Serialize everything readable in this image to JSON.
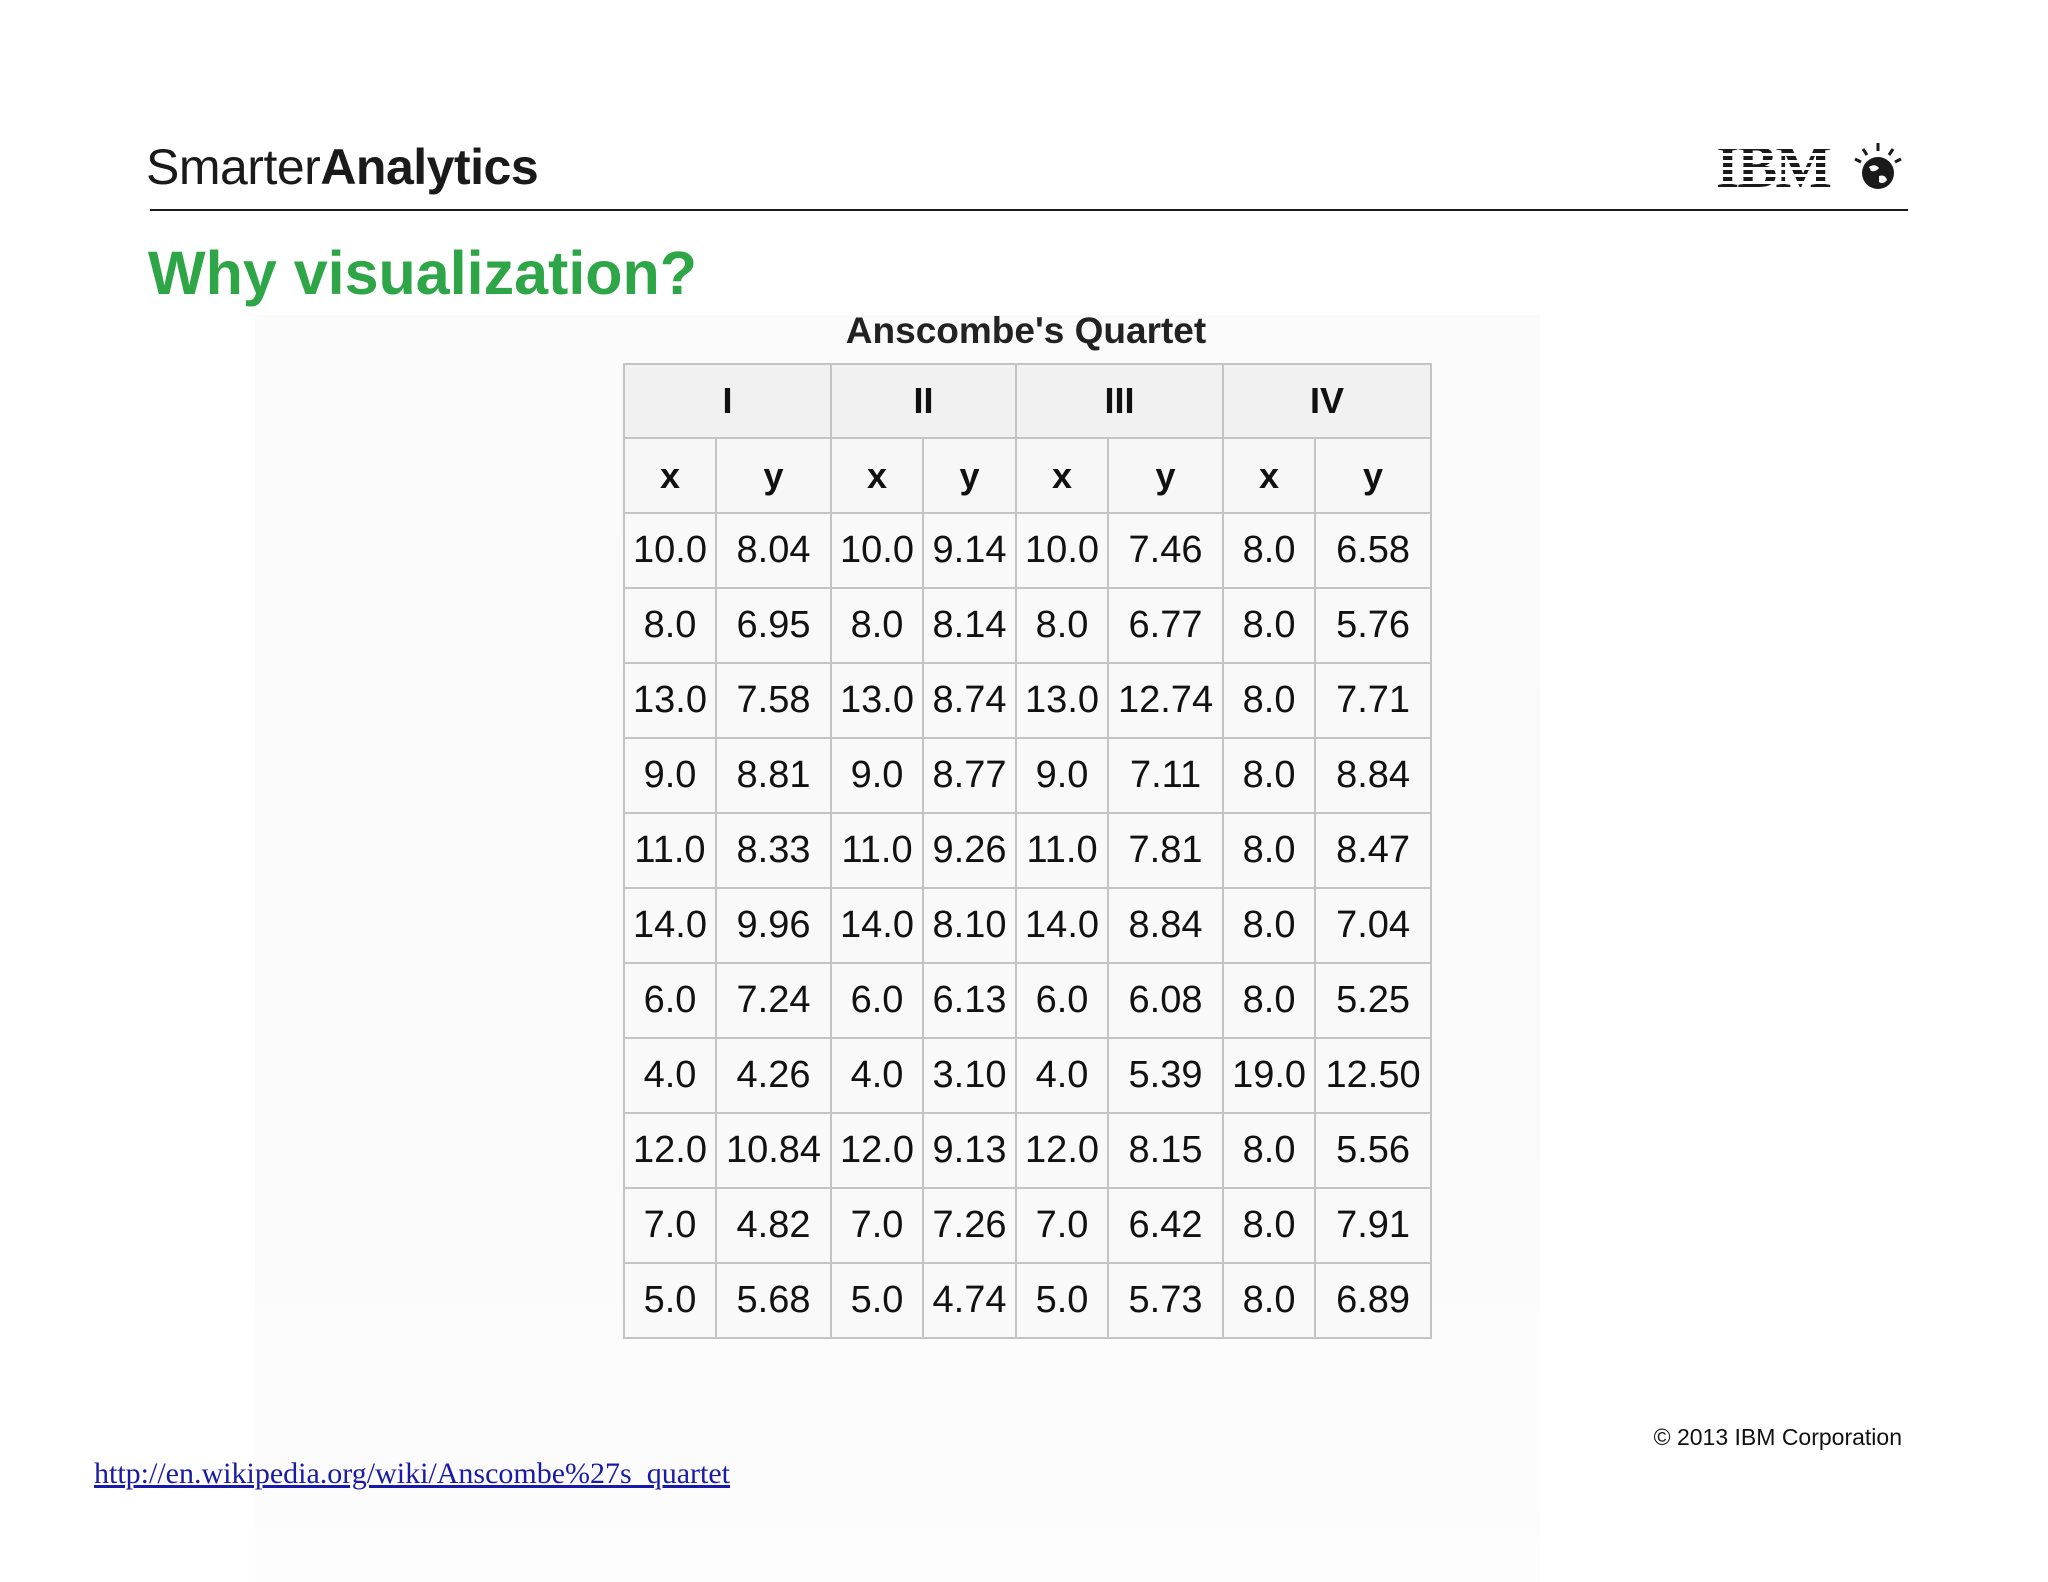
{
  "header": {
    "brand_light": "Smarter",
    "brand_bold": "Analytics",
    "logo_text": "IBM",
    "logo_icon": "globe-icon"
  },
  "slide": {
    "title": "Why visualization?"
  },
  "table": {
    "title": "Anscombe's Quartet",
    "groups": [
      "I",
      "II",
      "III",
      "IV"
    ],
    "subheaders": [
      "x",
      "y",
      "x",
      "y",
      "x",
      "y",
      "x",
      "y"
    ],
    "rows": [
      [
        "10.0",
        "8.04",
        "10.0",
        "9.14",
        "10.0",
        "7.46",
        "8.0",
        "6.58"
      ],
      [
        "8.0",
        "6.95",
        "8.0",
        "8.14",
        "8.0",
        "6.77",
        "8.0",
        "5.76"
      ],
      [
        "13.0",
        "7.58",
        "13.0",
        "8.74",
        "13.0",
        "12.74",
        "8.0",
        "7.71"
      ],
      [
        "9.0",
        "8.81",
        "9.0",
        "8.77",
        "9.0",
        "7.11",
        "8.0",
        "8.84"
      ],
      [
        "11.0",
        "8.33",
        "11.0",
        "9.26",
        "11.0",
        "7.81",
        "8.0",
        "8.47"
      ],
      [
        "14.0",
        "9.96",
        "14.0",
        "8.10",
        "14.0",
        "8.84",
        "8.0",
        "7.04"
      ],
      [
        "6.0",
        "7.24",
        "6.0",
        "6.13",
        "6.0",
        "6.08",
        "8.0",
        "5.25"
      ],
      [
        "4.0",
        "4.26",
        "4.0",
        "3.10",
        "4.0",
        "5.39",
        "19.0",
        "12.50"
      ],
      [
        "12.0",
        "10.84",
        "12.0",
        "9.13",
        "12.0",
        "8.15",
        "8.0",
        "5.56"
      ],
      [
        "7.0",
        "4.82",
        "7.0",
        "7.26",
        "7.0",
        "6.42",
        "8.0",
        "7.91"
      ],
      [
        "5.0",
        "5.68",
        "5.0",
        "4.74",
        "5.0",
        "5.73",
        "8.0",
        "6.89"
      ]
    ]
  },
  "footer": {
    "copyright": "© 2013 IBM Corporation",
    "link": "http://en.wikipedia.org/wiki/Anscombe%27s_quartet"
  },
  "colors": {
    "title_green": "#2ea647",
    "link_blue": "#1a1aa8",
    "table_border": "#c4c4c4"
  }
}
